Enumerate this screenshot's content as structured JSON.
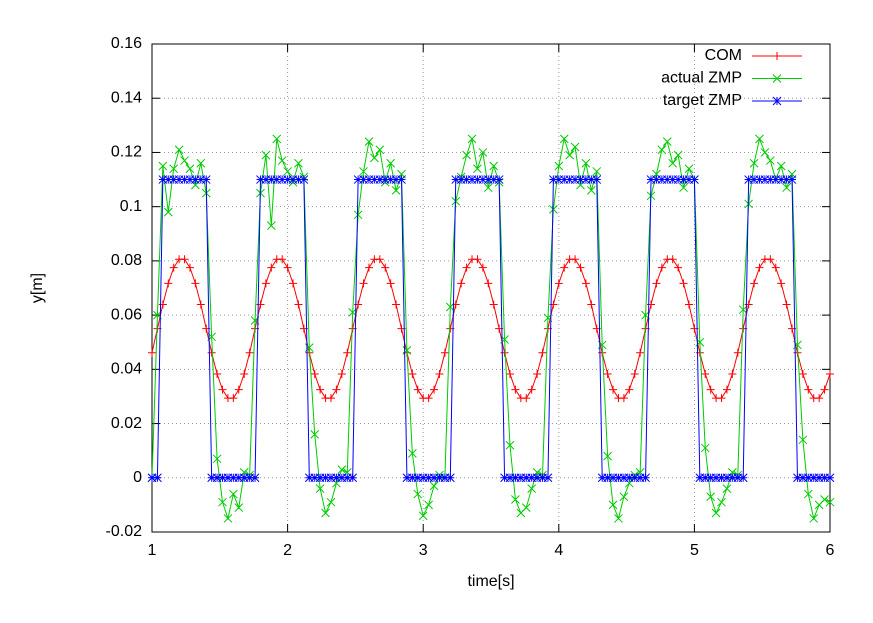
{
  "chart_data": {
    "type": "line",
    "xlabel": "time[s]",
    "ylabel": "y[m]",
    "xlim": [
      1,
      6
    ],
    "ylim": [
      -0.02,
      0.16
    ],
    "xticks": [
      1,
      2,
      3,
      4,
      5,
      6
    ],
    "yticks": [
      -0.02,
      0,
      0.02,
      0.04,
      0.06,
      0.08,
      0.1,
      0.12,
      0.14,
      0.16
    ],
    "grid": true,
    "legend": "top-right",
    "x": [
      1,
      1.04,
      1.08,
      1.12,
      1.16,
      1.2,
      1.24,
      1.28,
      1.32,
      1.36,
      1.4,
      1.44,
      1.48,
      1.52,
      1.56,
      1.6,
      1.64,
      1.68,
      1.72,
      1.76,
      1.8,
      1.84,
      1.88,
      1.92,
      1.96,
      2,
      2.04,
      2.08,
      2.12,
      2.16,
      2.2,
      2.24,
      2.28,
      2.32,
      2.36,
      2.4,
      2.44,
      2.48,
      2.52,
      2.56,
      2.6,
      2.64,
      2.68,
      2.72,
      2.76,
      2.8,
      2.84,
      2.88,
      2.92,
      2.96,
      3,
      3.04,
      3.08,
      3.12,
      3.16,
      3.2,
      3.24,
      3.28,
      3.32,
      3.36,
      3.4,
      3.44,
      3.48,
      3.52,
      3.56,
      3.6,
      3.64,
      3.68,
      3.72,
      3.76,
      3.8,
      3.84,
      3.88,
      3.92,
      3.96,
      4,
      4.04,
      4.08,
      4.12,
      4.16,
      4.2,
      4.24,
      4.28,
      4.32,
      4.36,
      4.4,
      4.44,
      4.48,
      4.52,
      4.56,
      4.6,
      4.64,
      4.68,
      4.72,
      4.76,
      4.8,
      4.84,
      4.88,
      4.92,
      4.96,
      5,
      5.04,
      5.08,
      5.12,
      5.16,
      5.2,
      5.24,
      5.28,
      5.32,
      5.36,
      5.4,
      5.44,
      5.48,
      5.52,
      5.56,
      5.6,
      5.64,
      5.68,
      5.72,
      5.76,
      5.8,
      5.84,
      5.88,
      5.92,
      5.96,
      6
    ],
    "series": [
      {
        "name": "COM",
        "color": "#ff0000",
        "marker": "plus",
        "values": [
          0.0461,
          0.055,
          0.0639,
          0.0717,
          0.0775,
          0.0806,
          0.0806,
          0.0775,
          0.0717,
          0.0639,
          0.055,
          0.0461,
          0.0383,
          0.0325,
          0.0294,
          0.0294,
          0.0325,
          0.0383,
          0.0461,
          0.055,
          0.0639,
          0.0717,
          0.0775,
          0.0806,
          0.0806,
          0.0775,
          0.0717,
          0.0639,
          0.055,
          0.0461,
          0.0383,
          0.0325,
          0.0294,
          0.0294,
          0.0325,
          0.0383,
          0.0461,
          0.055,
          0.0639,
          0.0717,
          0.0775,
          0.0806,
          0.0806,
          0.0775,
          0.0717,
          0.0639,
          0.055,
          0.0461,
          0.0383,
          0.0325,
          0.0294,
          0.0294,
          0.0325,
          0.0383,
          0.0461,
          0.055,
          0.0639,
          0.0717,
          0.0775,
          0.0806,
          0.0806,
          0.0775,
          0.0717,
          0.0639,
          0.055,
          0.0461,
          0.0383,
          0.0325,
          0.0294,
          0.0294,
          0.0325,
          0.0383,
          0.0461,
          0.055,
          0.0639,
          0.0717,
          0.0775,
          0.0806,
          0.0806,
          0.0775,
          0.0717,
          0.0639,
          0.055,
          0.0461,
          0.0383,
          0.0325,
          0.0294,
          0.0294,
          0.0325,
          0.0383,
          0.0461,
          0.055,
          0.0639,
          0.0717,
          0.0775,
          0.0806,
          0.0806,
          0.0775,
          0.0717,
          0.0639,
          0.055,
          0.0461,
          0.0383,
          0.0325,
          0.0294,
          0.0294,
          0.0325,
          0.0383,
          0.0461,
          0.055,
          0.0639,
          0.0717,
          0.0775,
          0.0806,
          0.0806,
          0.0775,
          0.0717,
          0.0639,
          0.055,
          0.0461,
          0.0383,
          0.0325,
          0.0294,
          0.0294,
          0.0325,
          0.0383
        ]
      },
      {
        "name": "actual ZMP",
        "color": "#00cc00",
        "marker": "cross",
        "values": [
          0,
          0.06,
          0.115,
          0.098,
          0.114,
          0.121,
          0.117,
          0.114,
          0.108,
          0.116,
          0.105,
          0.052,
          0.007,
          -0.009,
          -0.015,
          -0.006,
          -0.011,
          0.002,
          0.001,
          0.058,
          0.105,
          0.119,
          0.093,
          0.125,
          0.117,
          0.113,
          0.109,
          0.116,
          0.111,
          0.048,
          0.016,
          -0.004,
          -0.013,
          -0.009,
          -0.002,
          0.003,
          0.002,
          0.061,
          0.097,
          0.113,
          0.124,
          0.118,
          0.121,
          0.109,
          0.116,
          0.106,
          0.112,
          0.047,
          0.009,
          -0.006,
          -0.014,
          -0.01,
          -0.003,
          0.001,
          0,
          0.063,
          0.102,
          0.111,
          0.119,
          0.125,
          0.114,
          0.12,
          0.107,
          0.115,
          0.109,
          0.051,
          0.012,
          -0.008,
          -0.013,
          -0.011,
          -0.004,
          0.002,
          0.001,
          0.059,
          0.099,
          0.115,
          0.125,
          0.119,
          0.122,
          0.108,
          0.116,
          0.106,
          0.113,
          0.049,
          0.008,
          -0.01,
          -0.015,
          -0.007,
          -0.002,
          0.001,
          0.002,
          0.06,
          0.104,
          0.112,
          0.121,
          0.124,
          0.116,
          0.119,
          0.107,
          0.114,
          0.11,
          0.05,
          0.011,
          -0.007,
          -0.013,
          -0.009,
          -0.004,
          0.002,
          0.001,
          0.062,
          0.101,
          0.116,
          0.125,
          0.12,
          0.117,
          0.11,
          0.115,
          0.107,
          0.112,
          0.049,
          0.014,
          -0.006,
          -0.015,
          -0.01,
          -0.008,
          -0.009
        ]
      },
      {
        "name": "target ZMP",
        "color": "#0000ff",
        "marker": "star",
        "values": [
          0,
          0,
          0.11,
          0.11,
          0.11,
          0.11,
          0.11,
          0.11,
          0.11,
          0.11,
          0.11,
          0,
          0,
          0,
          0,
          0,
          0,
          0,
          0,
          0,
          0.11,
          0.11,
          0.11,
          0.11,
          0.11,
          0.11,
          0.11,
          0.11,
          0.11,
          0,
          0,
          0,
          0,
          0,
          0,
          0,
          0,
          0,
          0.11,
          0.11,
          0.11,
          0.11,
          0.11,
          0.11,
          0.11,
          0.11,
          0.11,
          0,
          0,
          0,
          0,
          0,
          0,
          0,
          0,
          0,
          0.11,
          0.11,
          0.11,
          0.11,
          0.11,
          0.11,
          0.11,
          0.11,
          0.11,
          0,
          0,
          0,
          0,
          0,
          0,
          0,
          0,
          0,
          0.11,
          0.11,
          0.11,
          0.11,
          0.11,
          0.11,
          0.11,
          0.11,
          0.11,
          0,
          0,
          0,
          0,
          0,
          0,
          0,
          0,
          0,
          0.11,
          0.11,
          0.11,
          0.11,
          0.11,
          0.11,
          0.11,
          0.11,
          0.11,
          0,
          0,
          0,
          0,
          0,
          0,
          0,
          0,
          0,
          0.11,
          0.11,
          0.11,
          0.11,
          0.11,
          0.11,
          0.11,
          0.11,
          0.11,
          0,
          0,
          0,
          0,
          0,
          0,
          0
        ]
      }
    ]
  }
}
